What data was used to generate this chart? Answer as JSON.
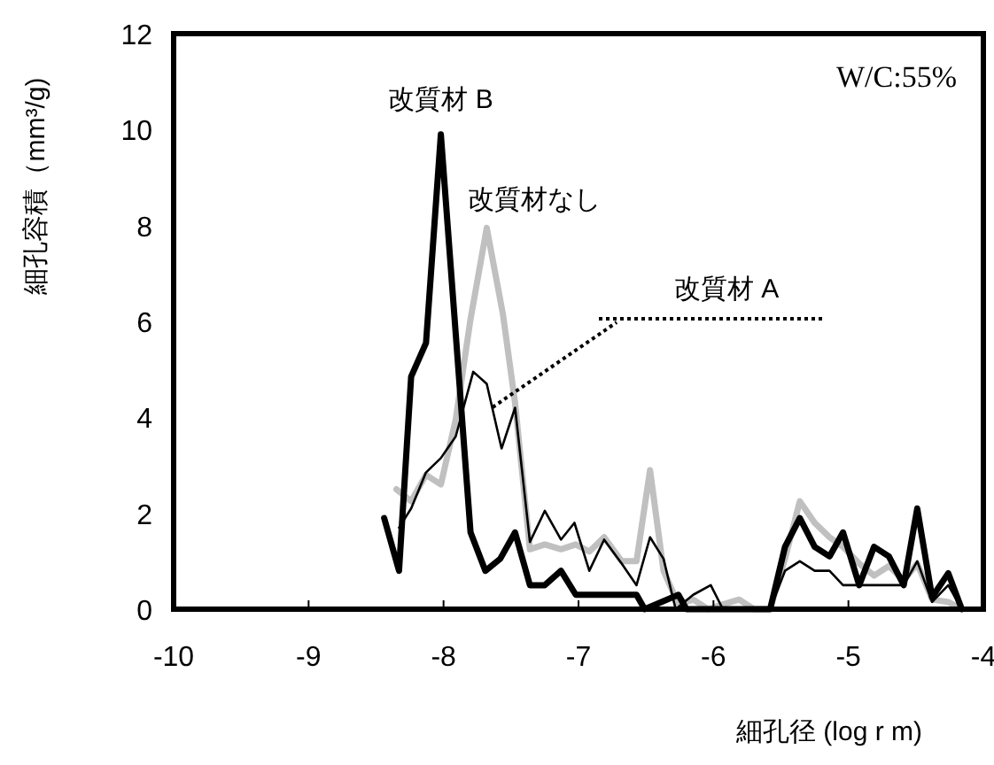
{
  "chart_data": {
    "type": "line",
    "xlabel": "細孔径 (log r m)",
    "ylabel": "細孔容積（mm³/g)",
    "xlim": [
      -10,
      -4
    ],
    "ylim": [
      0,
      12
    ],
    "xticks": [
      -10,
      -9,
      -8,
      -7,
      -6,
      -5,
      -4
    ],
    "yticks": [
      0,
      2,
      4,
      6,
      8,
      10,
      12
    ],
    "grid": false,
    "annotations": [
      "W/C:55%",
      {
        "text": "改質材 B",
        "x": -8.02,
        "y": 9.9
      },
      {
        "text": "改質材なし",
        "x": -7.68,
        "y": 7.95
      },
      "改質材 A"
    ],
    "series": [
      {
        "color": "#000000",
        "x": [
          -8.44,
          -8.33,
          -8.24,
          -8.13,
          -8.02,
          -7.8,
          -7.69,
          -7.58,
          -7.47,
          -7.36,
          -7.25,
          -7.13,
          -7.02,
          -6.57,
          -6.51,
          -6.26,
          -6.2,
          -5.58,
          -5.47,
          -5.36,
          -5.25,
          -5.14,
          -5.04,
          -4.92,
          -4.81,
          -4.7,
          -4.59,
          -4.49,
          -4.38,
          -4.26,
          -4.16
        ],
        "values": [
          1.9,
          0.8,
          4.85,
          5.55,
          9.9,
          1.6,
          0.8,
          1.05,
          1.6,
          0.5,
          0.5,
          0.8,
          0.3,
          0.3,
          0,
          0.3,
          0,
          0,
          1.3,
          1.9,
          1.3,
          1.1,
          1.6,
          0.5,
          1.3,
          1.1,
          0.5,
          2.1,
          0.25,
          0.75,
          0
        ]
      },
      {
        "color": "#c0c0c0",
        "x": [
          -8.35,
          -8.24,
          -8.13,
          -8.02,
          -7.91,
          -7.8,
          -7.68,
          -7.56,
          -7.47,
          -7.36,
          -7.25,
          -7.13,
          -7.02,
          -6.92,
          -6.81,
          -6.68,
          -6.57,
          -6.47,
          -6.37,
          -6.26,
          -6.15,
          -6.04,
          -5.93,
          -5.81,
          -5.7,
          -5.58,
          -5.47,
          -5.36,
          -5.25,
          -5.14,
          -5.04,
          -4.92,
          -4.81,
          -4.7,
          -4.59,
          -4.49,
          -4.38,
          -4.26,
          -4.16
        ],
        "values": [
          2.5,
          2.25,
          2.8,
          2.6,
          3.95,
          6.05,
          7.95,
          6.15,
          4.3,
          1.25,
          1.35,
          1.25,
          1.35,
          1.2,
          1.5,
          1,
          1,
          2.9,
          0.8,
          0.1,
          0.2,
          0,
          0.1,
          0.2,
          0,
          0,
          1.05,
          2.25,
          1.8,
          1.5,
          1.3,
          0.95,
          0.7,
          0.9,
          0.6,
          0.95,
          0.2,
          0.15,
          0
        ]
      },
      {
        "color": "#000000",
        "x": [
          -8.33,
          -8.24,
          -8.13,
          -8.02,
          -7.91,
          -7.78,
          -7.68,
          -7.57,
          -7.47,
          -7.36,
          -7.25,
          -7.13,
          -7.03,
          -6.92,
          -6.81,
          -6.68,
          -6.57,
          -6.47,
          -6.37,
          -6.28,
          -6.15,
          -6.02,
          -5.93,
          -5.58,
          -5.47,
          -5.36,
          -5.25,
          -5.14,
          -5.04,
          -4.59,
          -4.49,
          -4.38,
          -4.26,
          -4.16
        ],
        "values": [
          1.7,
          2.1,
          2.85,
          3.15,
          3.6,
          4.95,
          4.7,
          3.35,
          4.2,
          1.4,
          2.05,
          1.45,
          1.8,
          0.8,
          1.45,
          0.95,
          0.5,
          1.5,
          1.05,
          0,
          0.3,
          0.5,
          0,
          0,
          0.8,
          1,
          0.8,
          0.8,
          0.5,
          0.5,
          1,
          0.15,
          0.5,
          0
        ]
      }
    ]
  }
}
